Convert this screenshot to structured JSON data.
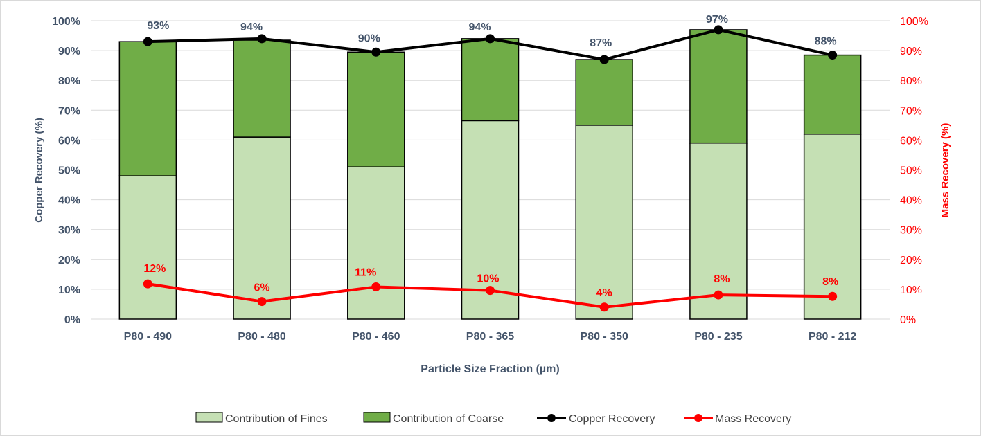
{
  "chart_data": {
    "type": "bar",
    "categories": [
      "P80 - 490",
      "P80 - 480",
      "P80 - 460",
      "P80 - 365",
      "P80 - 350",
      "P80 - 235",
      "P80 - 212"
    ],
    "series": [
      {
        "name": "Contribution of Fines",
        "kind": "stacked-bar",
        "axis": "left",
        "color": "#c5e0b4",
        "values": [
          48,
          61,
          51,
          66.5,
          65,
          59,
          62
        ]
      },
      {
        "name": "Contribution of Coarse",
        "kind": "stacked-bar",
        "axis": "left",
        "color": "#70ad47",
        "values": [
          45,
          32.5,
          38.5,
          27.5,
          22,
          38,
          26.5
        ]
      },
      {
        "name": "Copper Recovery",
        "kind": "line",
        "axis": "left",
        "color": "#000000",
        "values": [
          93,
          94,
          89.5,
          94,
          87,
          97,
          88.5
        ],
        "labels": [
          "93%",
          "94%",
          "90%",
          "94%",
          "87%",
          "97%",
          "88%"
        ]
      },
      {
        "name": "Mass Recovery",
        "kind": "line",
        "axis": "right",
        "color": "#ff0000",
        "values": [
          11.8,
          5.9,
          10.8,
          9.6,
          4.0,
          8.1,
          7.6
        ],
        "labels": [
          "12%",
          "6%",
          "11%",
          "10%",
          "4%",
          "8%",
          "8%"
        ]
      }
    ],
    "title": "",
    "xlabel": "Particle Size Fraction (µm)",
    "ylabel": "Copper Recovery (%)",
    "y2label": "Mass Recovery (%)",
    "ylim": [
      0,
      100
    ],
    "y2lim": [
      0,
      100
    ],
    "yticks": [
      "0%",
      "10%",
      "20%",
      "30%",
      "40%",
      "50%",
      "60%",
      "70%",
      "80%",
      "90%",
      "100%"
    ],
    "y2ticks": [
      "0%",
      "10%",
      "20%",
      "30%",
      "40%",
      "50%",
      "60%",
      "70%",
      "80%",
      "90%",
      "100%"
    ],
    "grid": true,
    "legend_position": "bottom"
  },
  "colors": {
    "axis_text": "#44546a",
    "mass_axis": "#ff0000",
    "gridline": "#d9d9d9"
  }
}
